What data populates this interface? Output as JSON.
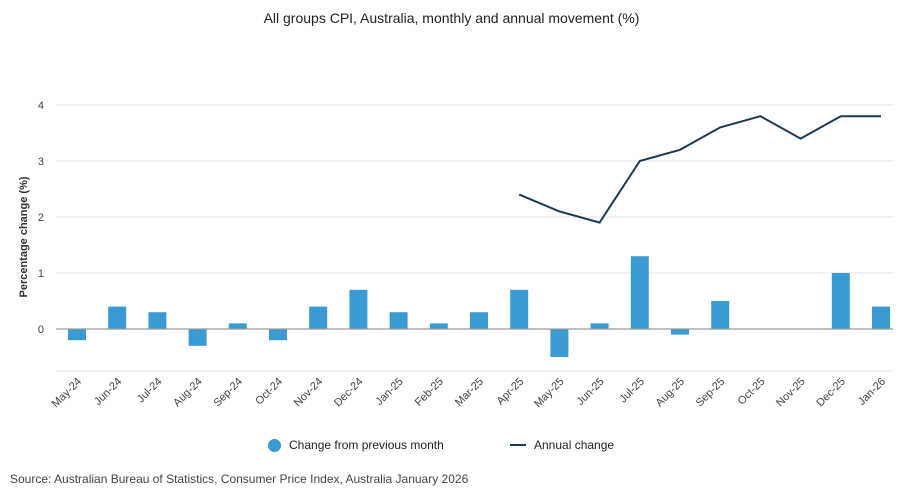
{
  "chart_data": {
    "type": "bar+line",
    "title": "All groups CPI, Australia, monthly and annual movement (%)",
    "ylabel": "Percentage change (%)",
    "xlabel": "",
    "ylim": [
      -0.75,
      4.2
    ],
    "yticks": [
      0,
      1,
      2,
      3,
      4
    ],
    "grid": true,
    "legend_placement": "bottom",
    "categories": [
      "May-24",
      "Jun-24",
      "Jul-24",
      "Aug-24",
      "Sep-24",
      "Oct-24",
      "Nov-24",
      "Dec-24",
      "Jan-25",
      "Feb-25",
      "Mar-25",
      "Apr-25",
      "May-25",
      "Jun-25",
      "Jul-25",
      "Aug-25",
      "Sep-25",
      "Oct-25",
      "Nov-25",
      "Dec-25",
      "Jan-26"
    ],
    "series": [
      {
        "name": "Change from previous month",
        "type": "bar",
        "color": "#3a9bd2",
        "values": [
          -0.2,
          0.4,
          0.3,
          -0.3,
          0.1,
          -0.2,
          0.4,
          0.7,
          0.3,
          0.1,
          0.3,
          0.7,
          -0.5,
          0.1,
          1.3,
          -0.1,
          0.5,
          0.0,
          0.0,
          1.0,
          0.4
        ]
      },
      {
        "name": "Annual change",
        "type": "line",
        "color": "#1b3a57",
        "values": [
          null,
          null,
          null,
          null,
          null,
          null,
          null,
          null,
          null,
          null,
          null,
          2.4,
          2.1,
          1.9,
          3.0,
          3.2,
          3.6,
          3.8,
          3.4,
          3.8,
          3.8
        ]
      }
    ]
  },
  "source": "Source: Australian Bureau of Statistics, Consumer Price Index, Australia January 2026"
}
